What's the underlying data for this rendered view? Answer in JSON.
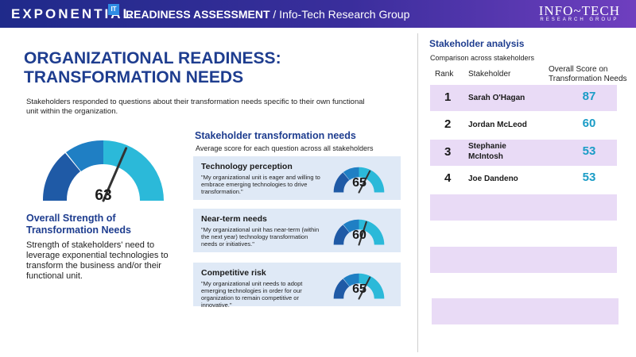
{
  "header": {
    "brand": "EXPONENTIAL",
    "brand_badge": "IT",
    "title": "READINESS ASSESSMENT",
    "subtitle": " / Info-Tech Research Group",
    "logo_main": "INFO~TECH",
    "logo_sub": "RESEARCH GROUP"
  },
  "page": {
    "title_line1": "ORGANIZATIONAL READINESS:",
    "title_line2": "TRANSFORMATION NEEDS",
    "intro": "Stakeholders responded to questions about their transformation needs specific to their own functional unit within the organization."
  },
  "overall": {
    "score": "63",
    "score_value": 63,
    "title_line1": "Overall Strength of",
    "title_line2": "Transformation Needs",
    "description": "Strength of stakeholders' need to leverage exponential technologies to transform the business and/or their functional unit."
  },
  "needs": {
    "title": "Stakeholder transformation needs",
    "subtitle": "Average score for each question across all stakeholders",
    "items": [
      {
        "title": "Technology perception",
        "text": "\"My organizational unit is eager and willing to embrace emerging technologies to drive transformation.\"",
        "score": "65",
        "score_value": 65
      },
      {
        "title": "Near-term needs",
        "text": "\"My organizational unit has near-term (within the next year) technology transformation needs or initiatives.\"",
        "score": "60",
        "score_value": 60
      },
      {
        "title": "Competitive risk",
        "text": "\"My organizational unit needs to adopt emerging technologies in order for our organization to remain competitive or innovative.\"",
        "score": "65",
        "score_value": 65
      }
    ]
  },
  "stakeholders": {
    "title": "Stakeholder analysis",
    "subtitle": "Comparison across stakeholders",
    "col_rank": "Rank",
    "col_name": "Stakeholder",
    "col_score": "Overall Score on Transformation Needs",
    "rows": [
      {
        "rank": "1",
        "name": "Sarah O'Hagan",
        "score": "87"
      },
      {
        "rank": "2",
        "name": "Jordan McLeod",
        "score": "60"
      },
      {
        "rank": "3",
        "name": "Stephanie McIntosh",
        "score": "53"
      },
      {
        "rank": "4",
        "name": "Joe Dandeno",
        "score": "53"
      }
    ]
  },
  "colors": {
    "header_start": "#1f2a8a",
    "header_end": "#6f3fbf",
    "title_blue": "#1e3d8f",
    "gauge_dark": "#1f5aa6",
    "gauge_mid": "#1f7fc4",
    "gauge_light": "#2bb9d9",
    "score_teal": "#1a9cc6",
    "row_shade": "#e9dbf6",
    "card_bg": "#dfe9f6"
  }
}
